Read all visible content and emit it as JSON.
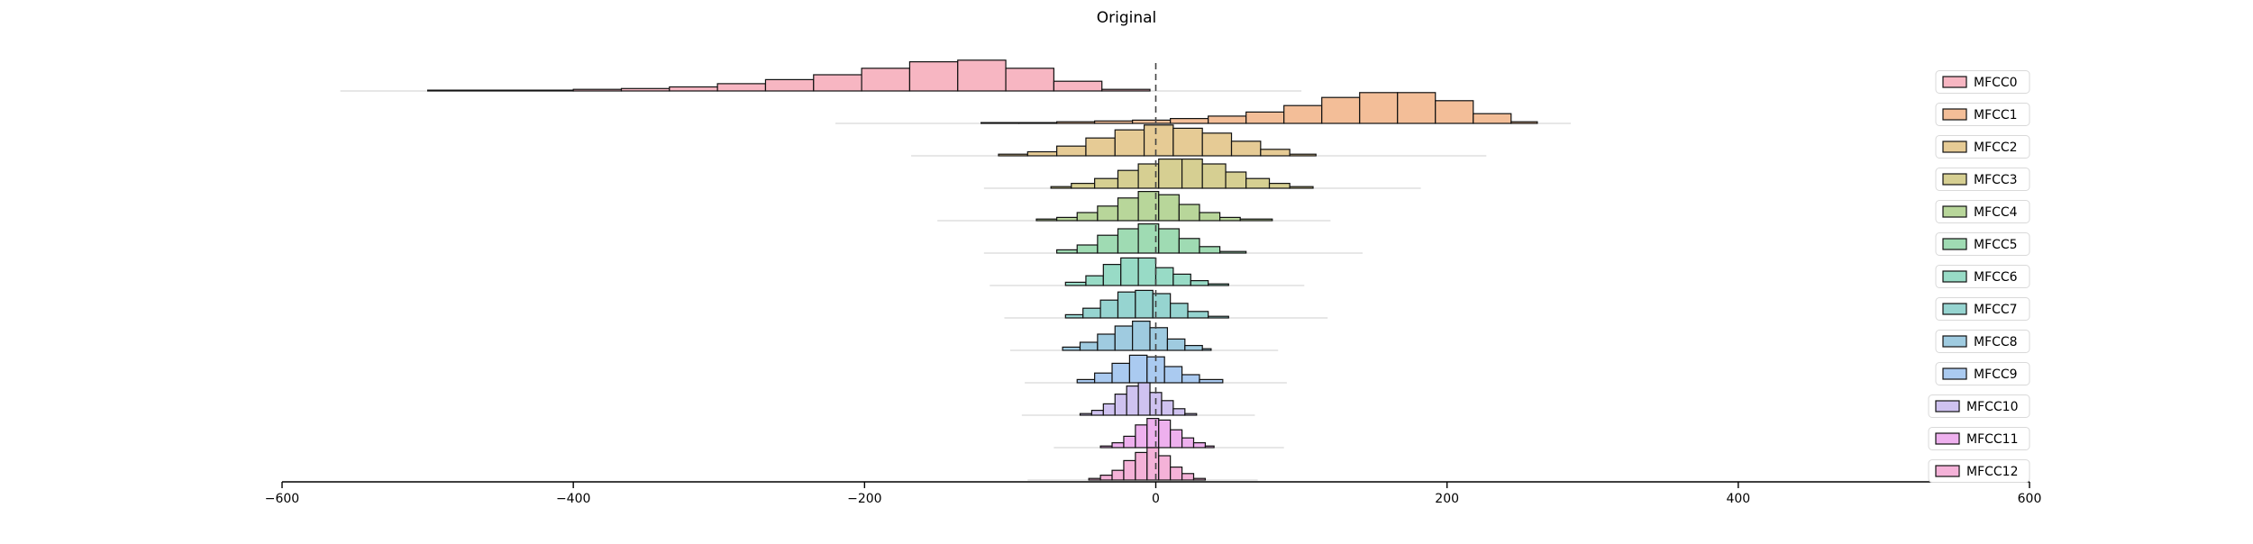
{
  "chart_data": {
    "type": "histogram-ridgeline",
    "title": "Original",
    "xlabel": "",
    "ylabel": "",
    "xlim": [
      -600,
      600
    ],
    "xticks": [
      -600,
      -400,
      -200,
      0,
      200,
      400,
      600
    ],
    "xtick_labels": [
      "−600",
      "−400",
      "∀",
      "0",
      "200",
      "400",
      "600"
    ],
    "reference_line_x": 0,
    "legend_position": "right",
    "series": [
      {
        "name": "MFCC0",
        "color": "#f7b6c2",
        "range": [
          -560,
          100
        ],
        "edges": [
          -500,
          -400,
          -367,
          -334,
          -301,
          -268,
          -235,
          -202,
          -169,
          -136,
          -103,
          -70,
          -37,
          -4
        ],
        "counts": [
          1,
          2,
          3,
          5,
          9,
          14,
          20,
          28,
          36,
          38,
          28,
          12,
          2
        ]
      },
      {
        "name": "MFCC1",
        "color": "#f3be98",
        "range": [
          -220,
          285
        ],
        "edges": [
          -120,
          -94,
          -68,
          -42,
          -16,
          10,
          36,
          62,
          88,
          114,
          140,
          166,
          192,
          218,
          244,
          262
        ],
        "counts": [
          1,
          1,
          2,
          3,
          4,
          6,
          9,
          14,
          22,
          32,
          38,
          38,
          28,
          12,
          2
        ]
      },
      {
        "name": "MFCC2",
        "color": "#e6cb95",
        "range": [
          -168,
          227
        ],
        "edges": [
          -108,
          -88,
          -68,
          -48,
          -28,
          -8,
          12,
          32,
          52,
          72,
          92,
          110
        ],
        "counts": [
          2,
          5,
          12,
          22,
          32,
          38,
          34,
          28,
          18,
          8,
          2
        ]
      },
      {
        "name": "MFCC3",
        "color": "#d6cf92",
        "range": [
          -118,
          182
        ],
        "edges": [
          -72,
          -58,
          -42,
          -26,
          -12,
          2,
          18,
          32,
          48,
          62,
          78,
          92,
          108
        ],
        "counts": [
          2,
          6,
          12,
          22,
          30,
          36,
          36,
          30,
          20,
          12,
          6,
          2
        ]
      },
      {
        "name": "MFCC4",
        "color": "#b8d69a",
        "range": [
          -150,
          120
        ],
        "edges": [
          -82,
          -68,
          -54,
          -40,
          -26,
          -12,
          2,
          16,
          30,
          44,
          58,
          80
        ],
        "counts": [
          2,
          4,
          10,
          18,
          28,
          36,
          32,
          20,
          10,
          4,
          2
        ]
      },
      {
        "name": "MFCC5",
        "color": "#9fdbb3",
        "range": [
          -118,
          142
        ],
        "edges": [
          -68,
          -54,
          -40,
          -26,
          -12,
          2,
          16,
          30,
          44,
          62
        ],
        "counts": [
          4,
          10,
          22,
          30,
          36,
          30,
          18,
          8,
          2
        ]
      },
      {
        "name": "MFCC6",
        "color": "#98dbc6",
        "range": [
          -114,
          102
        ],
        "edges": [
          -62,
          -48,
          -36,
          -24,
          -12,
          0,
          12,
          24,
          36,
          50
        ],
        "counts": [
          4,
          12,
          26,
          34,
          34,
          22,
          14,
          6,
          2
        ]
      },
      {
        "name": "MFCC7",
        "color": "#96d4d0",
        "range": [
          -104,
          118
        ],
        "edges": [
          -62,
          -50,
          -38,
          -26,
          -14,
          -2,
          10,
          22,
          36,
          50
        ],
        "counts": [
          4,
          12,
          22,
          32,
          34,
          30,
          18,
          8,
          2
        ]
      },
      {
        "name": "MFCC8",
        "color": "#9fcbe0",
        "range": [
          -100,
          84
        ],
        "edges": [
          -64,
          -52,
          -40,
          -28,
          -16,
          -4,
          8,
          20,
          32,
          38
        ],
        "counts": [
          4,
          10,
          20,
          30,
          36,
          28,
          14,
          6,
          2
        ]
      },
      {
        "name": "MFCC9",
        "color": "#aacaf0",
        "range": [
          -90,
          90
        ],
        "edges": [
          -54,
          -42,
          -30,
          -18,
          -6,
          6,
          18,
          30,
          46
        ],
        "counts": [
          4,
          12,
          24,
          34,
          32,
          20,
          10,
          4
        ]
      },
      {
        "name": "MFCC10",
        "color": "#cfc2f0",
        "range": [
          -92,
          68
        ],
        "edges": [
          -52,
          -44,
          -36,
          -28,
          -20,
          -12,
          -4,
          4,
          12,
          20,
          28
        ],
        "counts": [
          2,
          6,
          14,
          26,
          36,
          40,
          28,
          18,
          8,
          2
        ]
      },
      {
        "name": "MFCC11",
        "color": "#eeb0ee",
        "range": [
          -70,
          88
        ],
        "edges": [
          -38,
          -30,
          -22,
          -14,
          -6,
          2,
          10,
          18,
          26,
          34,
          40
        ],
        "counts": [
          2,
          6,
          14,
          28,
          36,
          34,
          22,
          12,
          6,
          2
        ]
      },
      {
        "name": "MFCC12",
        "color": "#f4b2d8",
        "range": [
          -88,
          70
        ],
        "edges": [
          -46,
          -38,
          -30,
          -22,
          -14,
          -6,
          2,
          10,
          18,
          26,
          34
        ],
        "counts": [
          2,
          6,
          12,
          24,
          34,
          40,
          30,
          16,
          8,
          2
        ]
      }
    ]
  }
}
